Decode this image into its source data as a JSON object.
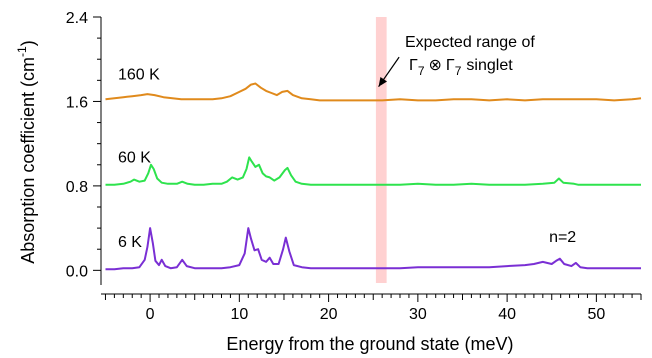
{
  "chart_data": {
    "type": "line",
    "xlabel": "Energy from the ground state (meV)",
    "ylabel": "Absorption coefficient (cm",
    "ylabel_sup": "-1",
    "ylabel_close": ")",
    "xlim": [
      -5.5,
      55
    ],
    "ylim": [
      -0.12,
      2.4
    ],
    "x_ticks": [
      0,
      10,
      20,
      30,
      40,
      50
    ],
    "x_tick_labels": [
      "0",
      "10",
      "20",
      "30",
      "40",
      "50"
    ],
    "x_minor_step": 1,
    "y_ticks": [
      0.0,
      0.8,
      1.6,
      2.4
    ],
    "y_tick_labels": [
      "0.0",
      "0.8",
      "1.6",
      "2.4"
    ],
    "y_minor_step": 0.2,
    "grid": false,
    "highlight_band": {
      "x0": 25.3,
      "x1": 26.5,
      "color": "#ffc9c9"
    },
    "annotation": {
      "line1": "Expected range of",
      "gamma1": "Γ",
      "sub1": "7",
      "otimes": "⊗",
      "gamma2": "Γ",
      "sub2": "7",
      "tail": "singlet",
      "arrow_from": [
        27.9,
        2.02
      ],
      "arrow_to": [
        25.6,
        1.74
      ]
    },
    "series": [
      {
        "name": "160 K",
        "color": "#e08a1c",
        "label_pos": [
          -3.6,
          1.81
        ],
        "points": [
          [
            -5,
            1.62
          ],
          [
            -4,
            1.63
          ],
          [
            -3,
            1.64
          ],
          [
            -2,
            1.65
          ],
          [
            -1,
            1.66
          ],
          [
            -0.3,
            1.67
          ],
          [
            0.5,
            1.66
          ],
          [
            1.5,
            1.64
          ],
          [
            2.5,
            1.63
          ],
          [
            3.5,
            1.62
          ],
          [
            5,
            1.62
          ],
          [
            6,
            1.62
          ],
          [
            7,
            1.62
          ],
          [
            8,
            1.63
          ],
          [
            9,
            1.65
          ],
          [
            10,
            1.69
          ],
          [
            10.7,
            1.72
          ],
          [
            11.3,
            1.76
          ],
          [
            11.8,
            1.77
          ],
          [
            12.4,
            1.73
          ],
          [
            13,
            1.7
          ],
          [
            13.6,
            1.68
          ],
          [
            14.2,
            1.66
          ],
          [
            14.8,
            1.69
          ],
          [
            15.4,
            1.7
          ],
          [
            16,
            1.66
          ],
          [
            17,
            1.63
          ],
          [
            18,
            1.62
          ],
          [
            19,
            1.61
          ],
          [
            20,
            1.61
          ],
          [
            22,
            1.61
          ],
          [
            24,
            1.61
          ],
          [
            26,
            1.61
          ],
          [
            28,
            1.62
          ],
          [
            30,
            1.61
          ],
          [
            32,
            1.61
          ],
          [
            34,
            1.62
          ],
          [
            36,
            1.62
          ],
          [
            38,
            1.61
          ],
          [
            40,
            1.62
          ],
          [
            42,
            1.61
          ],
          [
            44,
            1.62
          ],
          [
            46,
            1.62
          ],
          [
            48,
            1.62
          ],
          [
            50,
            1.62
          ],
          [
            52,
            1.61
          ],
          [
            54,
            1.62
          ],
          [
            55,
            1.63
          ]
        ]
      },
      {
        "name": "60 K",
        "color": "#2ee34d",
        "label_pos": [
          -3.6,
          1.02
        ],
        "points": [
          [
            -5,
            0.81
          ],
          [
            -4,
            0.81
          ],
          [
            -3,
            0.82
          ],
          [
            -2.2,
            0.84
          ],
          [
            -1.8,
            0.86
          ],
          [
            -1.2,
            0.84
          ],
          [
            -0.6,
            0.85
          ],
          [
            -0.2,
            0.92
          ],
          [
            0.1,
            1.0
          ],
          [
            0.4,
            0.96
          ],
          [
            0.8,
            0.87
          ],
          [
            1.3,
            0.83
          ],
          [
            2,
            0.82
          ],
          [
            3,
            0.82
          ],
          [
            3.6,
            0.84
          ],
          [
            4.2,
            0.82
          ],
          [
            5,
            0.81
          ],
          [
            6,
            0.81
          ],
          [
            7,
            0.82
          ],
          [
            8,
            0.82
          ],
          [
            8.6,
            0.84
          ],
          [
            9.2,
            0.88
          ],
          [
            9.8,
            0.86
          ],
          [
            10.4,
            0.88
          ],
          [
            10.8,
            0.96
          ],
          [
            11.1,
            1.07
          ],
          [
            11.4,
            1.03
          ],
          [
            11.8,
            0.98
          ],
          [
            12.2,
            1.0
          ],
          [
            12.6,
            0.92
          ],
          [
            13,
            0.89
          ],
          [
            13.4,
            0.88
          ],
          [
            13.9,
            0.85
          ],
          [
            14.5,
            0.88
          ],
          [
            15.1,
            0.95
          ],
          [
            15.4,
            0.97
          ],
          [
            15.8,
            0.9
          ],
          [
            16.3,
            0.84
          ],
          [
            17,
            0.82
          ],
          [
            18,
            0.81
          ],
          [
            20,
            0.81
          ],
          [
            22,
            0.81
          ],
          [
            24,
            0.81
          ],
          [
            26,
            0.81
          ],
          [
            28,
            0.81
          ],
          [
            30,
            0.82
          ],
          [
            32,
            0.81
          ],
          [
            34,
            0.81
          ],
          [
            36,
            0.82
          ],
          [
            38,
            0.81
          ],
          [
            40,
            0.81
          ],
          [
            42,
            0.81
          ],
          [
            44,
            0.82
          ],
          [
            45.3,
            0.83
          ],
          [
            45.8,
            0.87
          ],
          [
            46.3,
            0.83
          ],
          [
            47.5,
            0.82
          ],
          [
            48,
            0.81
          ],
          [
            50,
            0.81
          ],
          [
            52,
            0.81
          ],
          [
            54,
            0.81
          ],
          [
            55,
            0.81
          ]
        ]
      },
      {
        "name": "6 K",
        "color": "#7a2fd4",
        "label_pos": [
          -3.6,
          0.22
        ],
        "points": [
          [
            -5,
            0.01
          ],
          [
            -4,
            0.01
          ],
          [
            -3,
            0.02
          ],
          [
            -2,
            0.02
          ],
          [
            -1.2,
            0.03
          ],
          [
            -0.6,
            0.1
          ],
          [
            -0.3,
            0.22
          ],
          [
            0,
            0.4
          ],
          [
            0.3,
            0.26
          ],
          [
            0.6,
            0.09
          ],
          [
            1,
            0.05
          ],
          [
            1.3,
            0.1
          ],
          [
            1.7,
            0.04
          ],
          [
            2.3,
            0.02
          ],
          [
            3,
            0.03
          ],
          [
            3.6,
            0.1
          ],
          [
            4.1,
            0.04
          ],
          [
            5,
            0.02
          ],
          [
            6,
            0.02
          ],
          [
            7,
            0.02
          ],
          [
            8,
            0.02
          ],
          [
            9,
            0.03
          ],
          [
            10,
            0.05
          ],
          [
            10.6,
            0.16
          ],
          [
            11,
            0.4
          ],
          [
            11.3,
            0.3
          ],
          [
            11.7,
            0.19
          ],
          [
            12.1,
            0.2
          ],
          [
            12.5,
            0.1
          ],
          [
            13,
            0.08
          ],
          [
            13.4,
            0.12
          ],
          [
            13.8,
            0.06
          ],
          [
            14.4,
            0.06
          ],
          [
            14.9,
            0.2
          ],
          [
            15.2,
            0.31
          ],
          [
            15.6,
            0.18
          ],
          [
            16.1,
            0.05
          ],
          [
            17,
            0.03
          ],
          [
            18,
            0.02
          ],
          [
            20,
            0.02
          ],
          [
            22,
            0.02
          ],
          [
            24,
            0.02
          ],
          [
            26,
            0.02
          ],
          [
            28,
            0.02
          ],
          [
            30,
            0.03
          ],
          [
            32,
            0.03
          ],
          [
            34,
            0.03
          ],
          [
            36,
            0.03
          ],
          [
            38,
            0.03
          ],
          [
            40,
            0.04
          ],
          [
            42,
            0.05
          ],
          [
            43,
            0.06
          ],
          [
            44,
            0.08
          ],
          [
            45,
            0.06
          ],
          [
            45.5,
            0.09
          ],
          [
            45.9,
            0.11
          ],
          [
            46.4,
            0.06
          ],
          [
            47.2,
            0.04
          ],
          [
            47.7,
            0.07
          ],
          [
            48.2,
            0.03
          ],
          [
            49,
            0.02
          ],
          [
            50,
            0.02
          ],
          [
            52,
            0.02
          ],
          [
            54,
            0.02
          ],
          [
            55,
            0.02
          ]
        ]
      }
    ],
    "peak_label": {
      "text": "n=2",
      "pos": [
        44.7,
        0.27
      ]
    }
  }
}
